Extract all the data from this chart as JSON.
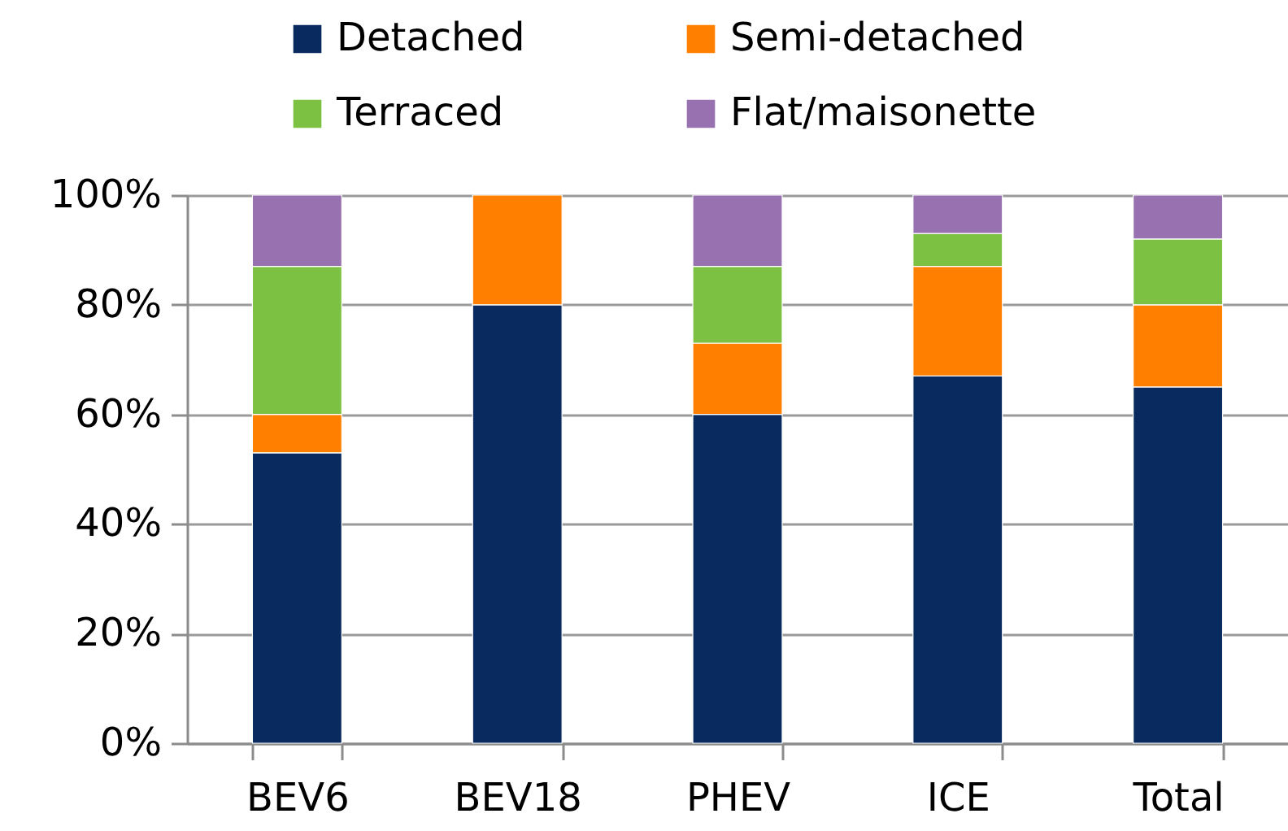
{
  "chart_data": {
    "type": "bar",
    "stacked": true,
    "categories": [
      "BEV6",
      "BEV18",
      "PHEV",
      "ICE",
      "Total"
    ],
    "series": [
      {
        "name": "Detached",
        "color": "#082a5e",
        "values": [
          53,
          80,
          60,
          67,
          65
        ]
      },
      {
        "name": "Semi-detached",
        "color": "#ff8000",
        "values": [
          7,
          20,
          13,
          20,
          15
        ]
      },
      {
        "name": "Terraced",
        "color": "#7dc142",
        "values": [
          27,
          0,
          14,
          6,
          12
        ]
      },
      {
        "name": "Flat/maisonette",
        "color": "#9771b0",
        "values": [
          13,
          0,
          13,
          7,
          8
        ]
      }
    ],
    "ylim": [
      0,
      100
    ],
    "yticks": [
      {
        "value": 0,
        "label": "0%"
      },
      {
        "value": 20,
        "label": "20%"
      },
      {
        "value": 40,
        "label": "40%"
      },
      {
        "value": 60,
        "label": "60%"
      },
      {
        "value": 80,
        "label": "80%"
      },
      {
        "value": 100,
        "label": "100%"
      }
    ],
    "grid": "y",
    "legend": "top"
  }
}
